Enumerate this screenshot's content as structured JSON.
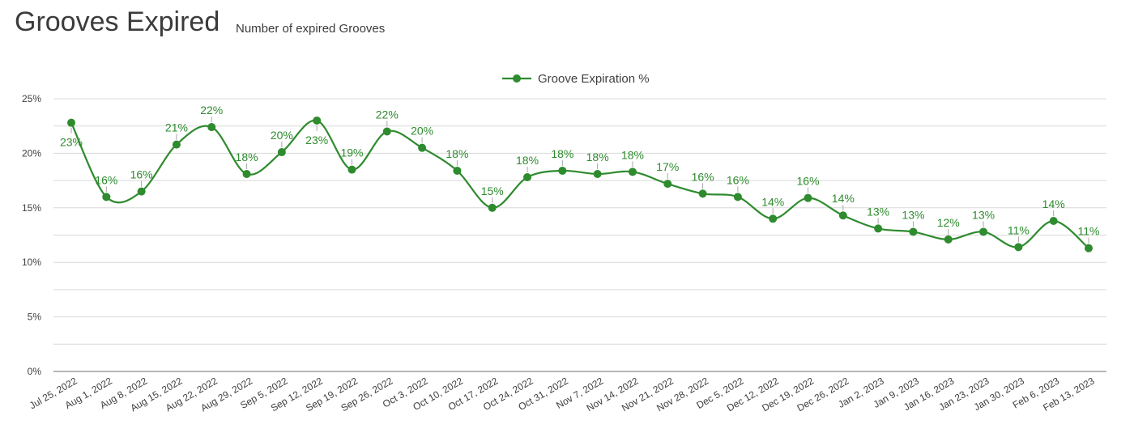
{
  "header": {
    "title": "Grooves Expired",
    "subtitle": "Number of expired Grooves"
  },
  "chart_data": {
    "type": "line",
    "smooth": true,
    "title": "Grooves Expired",
    "subtitle": "Number of expired Grooves",
    "xlabel": "",
    "ylabel": "",
    "ylim": [
      0,
      25
    ],
    "y_ticks": [
      "0%",
      "5%",
      "10%",
      "15%",
      "20%",
      "25%"
    ],
    "grid": true,
    "legend_position": "top-center",
    "colors": {
      "series": "#2e8b2e",
      "gridline": "#d9d9d9",
      "axis": "#8c8c8c",
      "leader": "#a6a6a6"
    },
    "categories": [
      "Jul 25, 2022",
      "Aug 1, 2022",
      "Aug 8, 2022",
      "Aug 15, 2022",
      "Aug 22, 2022",
      "Aug 29, 2022",
      "Sep 5, 2022",
      "Sep 12, 2022",
      "Sep 19, 2022",
      "Sep 26, 2022",
      "Oct 3, 2022",
      "Oct 10, 2022",
      "Oct 17, 2022",
      "Oct 24, 2022",
      "Oct 31, 2022",
      "Nov 7, 2022",
      "Nov 14, 2022",
      "Nov 21, 2022",
      "Nov 28, 2022",
      "Dec 5, 2022",
      "Dec 12, 2022",
      "Dec 19, 2022",
      "Dec 26, 2022",
      "Jan 2, 2023",
      "Jan 9, 2023",
      "Jan 16, 2023",
      "Jan 23, 2023",
      "Jan 30, 2023",
      "Feb 6, 2023",
      "Feb 13, 2023"
    ],
    "series": [
      {
        "name": "Groove Expiration %",
        "values": [
          22.8,
          16.0,
          16.5,
          20.8,
          22.4,
          18.1,
          20.1,
          23.0,
          18.5,
          22.0,
          20.5,
          18.4,
          15.0,
          17.8,
          18.4,
          18.1,
          18.3,
          17.2,
          16.3,
          16.0,
          14.0,
          15.9,
          14.3,
          13.1,
          12.8,
          12.1,
          12.8,
          11.4,
          13.8,
          11.3
        ],
        "labels": [
          "23%",
          "16%",
          "16%",
          "21%",
          "22%",
          "18%",
          "20%",
          "23%",
          "19%",
          "22%",
          "20%",
          "18%",
          "15%",
          "18%",
          "18%",
          "18%",
          "18%",
          "17%",
          "16%",
          "16%",
          "14%",
          "16%",
          "14%",
          "13%",
          "13%",
          "12%",
          "13%",
          "11%",
          "14%",
          "11%"
        ]
      }
    ]
  }
}
